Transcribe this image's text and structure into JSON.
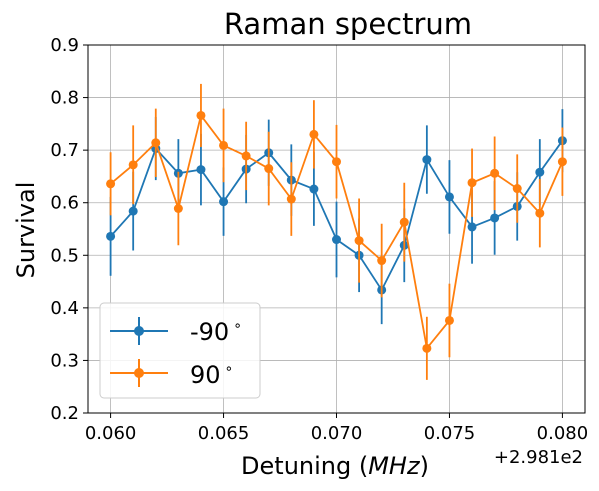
{
  "chart_data": {
    "type": "line",
    "title": "Raman spectrum",
    "xlabel": "Detuning (MHz)",
    "xlabel_text": "Detuning (",
    "xlabel_unit": "MHz",
    "xlabel_close": ")",
    "ylabel": "Survival",
    "x_offset_label": "+2.981e2",
    "xlim": [
      0.059,
      0.081
    ],
    "ylim": [
      0.2,
      0.9
    ],
    "xticks": [
      0.06,
      0.065,
      0.07,
      0.075,
      0.08
    ],
    "xtick_labels": [
      "0.060",
      "0.065",
      "0.070",
      "0.075",
      "0.080"
    ],
    "yticks": [
      0.2,
      0.3,
      0.4,
      0.5,
      0.6,
      0.7,
      0.8,
      0.9
    ],
    "ytick_labels": [
      "0.2",
      "0.3",
      "0.4",
      "0.5",
      "0.6",
      "0.7",
      "0.8",
      "0.9"
    ],
    "grid": true,
    "legend_position": "bottom-left",
    "x": [
      0.06,
      0.061,
      0.062,
      0.063,
      0.064,
      0.065,
      0.066,
      0.067,
      0.068,
      0.069,
      0.07,
      0.071,
      0.072,
      0.073,
      0.074,
      0.075,
      0.076,
      0.077,
      0.078,
      0.079,
      0.08
    ],
    "series": [
      {
        "name": "-90$^\\circ$",
        "legend_main": "-90",
        "legend_sup": "∘",
        "color": "#1f77b4",
        "values": [
          0.536,
          0.584,
          0.703,
          0.656,
          0.663,
          0.602,
          0.664,
          0.695,
          0.643,
          0.626,
          0.53,
          0.5,
          0.434,
          0.519,
          0.682,
          0.611,
          0.554,
          0.571,
          0.593,
          0.658,
          0.718
        ],
        "errors": [
          0.075,
          0.075,
          0.06,
          0.065,
          0.068,
          0.065,
          0.065,
          0.063,
          0.068,
          0.07,
          0.072,
          0.07,
          0.065,
          0.07,
          0.065,
          0.07,
          0.07,
          0.07,
          0.065,
          0.063,
          0.06
        ]
      },
      {
        "name": "90$^\\circ$",
        "legend_main": "90",
        "legend_sup": "∘",
        "color": "#ff7f0e",
        "values": [
          0.636,
          0.672,
          0.714,
          0.589,
          0.766,
          0.709,
          0.689,
          0.665,
          0.607,
          0.73,
          0.678,
          0.528,
          0.49,
          0.563,
          0.323,
          0.376,
          0.638,
          0.656,
          0.627,
          0.58,
          0.678
        ],
        "errors": [
          0.06,
          0.075,
          0.065,
          0.07,
          0.06,
          0.07,
          0.065,
          0.07,
          0.07,
          0.065,
          0.07,
          0.08,
          0.07,
          0.075,
          0.06,
          0.07,
          0.065,
          0.07,
          0.065,
          0.065,
          0.065
        ]
      }
    ]
  }
}
